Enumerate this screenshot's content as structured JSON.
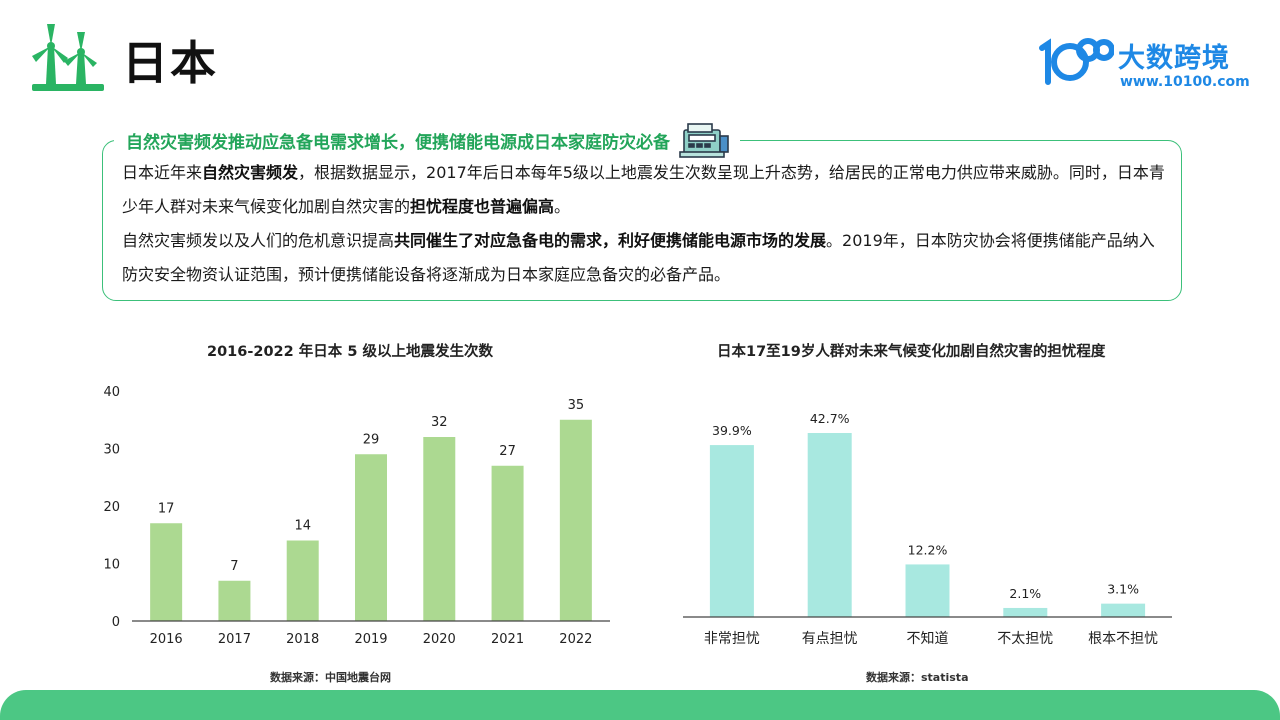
{
  "header": {
    "title": "日本",
    "brand_name": "大数跨境",
    "brand_url": "www.10100.com",
    "logo_icon": "wind-turbine-icon",
    "brand_icon": "brand-10100-icon"
  },
  "section": {
    "heading": "自然灾害频发推动应急备电需求增长，便携储能电源成日本家庭防灾必备",
    "heading_icon": "cash-register-icon",
    "p1": {
      "t1": "日本近年来",
      "b1": "自然灾害频发",
      "t2": "，根据数据显示，2017年后日本每年5级以上地震发生次数呈现上升态势，给居民的正常电力供应带来威胁。同时，日本青少年人群对未来气候变化加剧自然灾害的",
      "b2": "担忧程度也普遍偏高",
      "t3": "。"
    },
    "p2": {
      "t1": "自然灾害频发以及人们的危机意识提高",
      "b1": "共同催生了对应急备电的需求，利好便携储能电源市场的发展",
      "t2": "。2019年，日本防灾协会将便携储能产品纳入防灾安全物资认证范围，预计便携储能设备将逐渐成为日本家庭应急备灾的必备产品。"
    }
  },
  "colors": {
    "accent_green": "#23a55a",
    "bar_green": "#acd991",
    "bar_teal": "#a8e8e0",
    "brand_blue": "#1e88e5",
    "footer_green": "#4cc784"
  },
  "chart_data": [
    {
      "type": "bar",
      "title": "2016-2022 年日本 5 级以上地震发生次数",
      "categories": [
        "2016",
        "2017",
        "2018",
        "2019",
        "2020",
        "2021",
        "2022"
      ],
      "values": [
        17,
        7,
        14,
        29,
        32,
        27,
        35
      ],
      "value_labels": [
        "17",
        "7",
        "14",
        "29",
        "32",
        "27",
        "35"
      ],
      "yticks": [
        "0",
        "10",
        "20",
        "30",
        "40"
      ],
      "ylim": [
        0,
        40
      ],
      "grid": false,
      "source": "数据来源：中国地震台网"
    },
    {
      "type": "bar",
      "title": "日本17至19岁人群对未来气候变化加剧自然灾害的担忧程度",
      "categories": [
        "非常担忧",
        "有点担忧",
        "不知道",
        "不太担忧",
        "根本不担忧"
      ],
      "values": [
        39.9,
        42.7,
        12.2,
        2.1,
        3.1
      ],
      "value_labels": [
        "39.9%",
        "42.7%",
        "12.2%",
        "2.1%",
        "3.1%"
      ],
      "grid": false,
      "source": "数据来源：statista"
    }
  ]
}
